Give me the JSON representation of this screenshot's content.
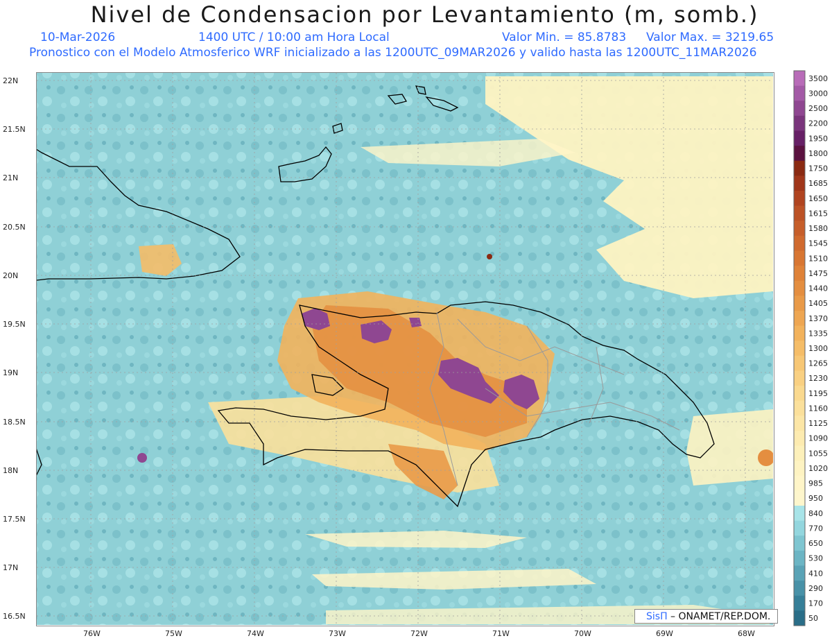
{
  "title": "Nivel de Condensacion por Levantamiento (m, somb.)",
  "date": "10-Mar-2026",
  "time": "1400 UTC / 10:00 am Hora Local",
  "min_label": "Valor Min. = 85.8783",
  "max_label": "Valor Max. = 3219.65",
  "forecast_line": "Pronostico con el Modelo Atmosferico WRF inicializado a las 1200UTC_09MAR2026 y valido hasta las  1200UTC_11MAR2026",
  "credit": {
    "sis": "SisΠ",
    "rest": " – ONAMET/REP.DOM."
  },
  "lat_labels": [
    "22N",
    "21.5N",
    "21N",
    "20.5N",
    "20N",
    "19.5N",
    "19N",
    "18.5N",
    "18N",
    "17.5N",
    "17N",
    "16.5N"
  ],
  "lon_labels": [
    "76W",
    "75W",
    "74W",
    "73W",
    "72W",
    "71W",
    "70W",
    "69W",
    "68W"
  ],
  "colorbar": {
    "labels": [
      "3500",
      "3000",
      "2500",
      "2200",
      "1950",
      "1800",
      "1750",
      "1685",
      "1650",
      "1615",
      "1580",
      "1545",
      "1510",
      "1475",
      "1440",
      "1405",
      "1370",
      "1335",
      "1300",
      "1265",
      "1230",
      "1195",
      "1160",
      "1125",
      "1090",
      "1055",
      "1020",
      "985",
      "950",
      "840",
      "770",
      "650",
      "530",
      "410",
      "290",
      "170",
      "50"
    ],
    "colors": [
      "#b86cb8",
      "#a35aa6",
      "#8f4791",
      "#7a357c",
      "#672066",
      "#5b1240",
      "#8a2a12",
      "#a0361a",
      "#b04420",
      "#bc5226",
      "#c65e2a",
      "#d06a2e",
      "#d87632",
      "#df8238",
      "#e48e40",
      "#e99a48",
      "#ee a652",
      "#f2b25c",
      "#f5bd68",
      "#f7c775",
      "#f9d082",
      "#fad98f",
      "#fbe09b",
      "#fce6a6",
      "#fdebb0",
      "#fdf0ba",
      "#fef3c2",
      "#fff5c8",
      "#fef6cc",
      "#a8e4e8",
      "#93d6de",
      "#7fc6d1",
      "#6cb5c4",
      "#5aa3b6",
      "#4891a7",
      "#367f98",
      "#2a6e88"
    ]
  }
}
